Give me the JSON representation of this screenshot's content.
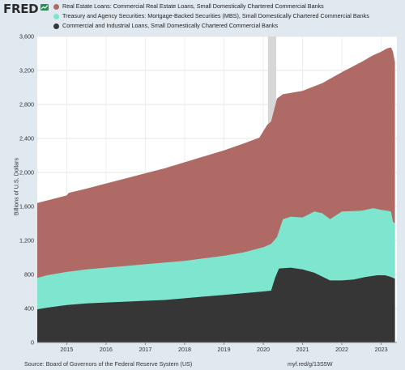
{
  "brand": {
    "logo_text": "FRED"
  },
  "footer": {
    "source": "Source: Board of Governors of the Federal Reserve System (US)",
    "url": "myf.red/g/13S5W"
  },
  "colors": {
    "background": "#e1e9f0",
    "plot_bg": "#ffffff",
    "recession_shade": "#d7d7d7",
    "real_estate": "#b06a66",
    "mbs": "#7ee6cf",
    "ci_loans": "#363636"
  },
  "chart_data": {
    "type": "area",
    "stacked": false,
    "title": "",
    "xlabel": "",
    "ylabel": "Billions of U.S. Dollars",
    "ylim": [
      0,
      3600
    ],
    "yticks": [
      "0",
      "400",
      "800",
      "1,200",
      "1,600",
      "2,000",
      "2,400",
      "2,800",
      "3,200",
      "3,600"
    ],
    "ytick_values": [
      0,
      400,
      800,
      1200,
      1600,
      2000,
      2400,
      2800,
      3200,
      3600
    ],
    "xlim": [
      2014.25,
      2023.4
    ],
    "xticks": [
      "2015",
      "2016",
      "2017",
      "2018",
      "2019",
      "2020",
      "2021",
      "2022",
      "2023"
    ],
    "xtick_values": [
      2015,
      2016,
      2017,
      2018,
      2019,
      2020,
      2021,
      2022,
      2023
    ],
    "recession": {
      "start": 2020.12,
      "end": 2020.33
    },
    "grid": true,
    "legend_position": "top-left",
    "series": [
      {
        "name": "Real Estate Loans: Commercial Real Estate Loans, Small Domestically Chartered Commercial Banks",
        "color": "#b06a66",
        "points": [
          [
            2014.25,
            1640
          ],
          [
            2014.5,
            1670
          ],
          [
            2014.75,
            1700
          ],
          [
            2015.0,
            1730
          ],
          [
            2015.05,
            1760
          ],
          [
            2015.5,
            1810
          ],
          [
            2016.0,
            1870
          ],
          [
            2016.5,
            1930
          ],
          [
            2017.0,
            1990
          ],
          [
            2017.5,
            2050
          ],
          [
            2018.0,
            2120
          ],
          [
            2018.5,
            2190
          ],
          [
            2019.0,
            2260
          ],
          [
            2019.5,
            2340
          ],
          [
            2019.9,
            2410
          ],
          [
            2020.1,
            2560
          ],
          [
            2020.2,
            2600
          ],
          [
            2020.35,
            2870
          ],
          [
            2020.5,
            2920
          ],
          [
            2021.0,
            2960
          ],
          [
            2021.5,
            3050
          ],
          [
            2022.0,
            3180
          ],
          [
            2022.5,
            3300
          ],
          [
            2022.8,
            3380
          ],
          [
            2023.0,
            3420
          ],
          [
            2023.15,
            3460
          ],
          [
            2023.25,
            3470
          ],
          [
            2023.3,
            3420
          ],
          [
            2023.35,
            3300
          ]
        ]
      },
      {
        "name": "Treasury and Agency Securities: Mortgage-Backed Securities (MBS), Small Domestically Chartered Commercial Banks",
        "color": "#7ee6cf",
        "points": [
          [
            2014.25,
            760
          ],
          [
            2014.5,
            790
          ],
          [
            2015.0,
            830
          ],
          [
            2015.5,
            860
          ],
          [
            2016.0,
            880
          ],
          [
            2016.5,
            900
          ],
          [
            2017.0,
            920
          ],
          [
            2017.5,
            940
          ],
          [
            2018.0,
            960
          ],
          [
            2018.5,
            990
          ],
          [
            2019.0,
            1020
          ],
          [
            2019.5,
            1060
          ],
          [
            2020.0,
            1120
          ],
          [
            2020.2,
            1160
          ],
          [
            2020.35,
            1240
          ],
          [
            2020.5,
            1450
          ],
          [
            2020.7,
            1480
          ],
          [
            2021.0,
            1470
          ],
          [
            2021.3,
            1540
          ],
          [
            2021.5,
            1520
          ],
          [
            2021.7,
            1450
          ],
          [
            2022.0,
            1540
          ],
          [
            2022.5,
            1550
          ],
          [
            2022.8,
            1580
          ],
          [
            2023.0,
            1560
          ],
          [
            2023.15,
            1550
          ],
          [
            2023.25,
            1540
          ],
          [
            2023.3,
            1420
          ],
          [
            2023.35,
            1400
          ]
        ]
      },
      {
        "name": "Commercial and Industrial Loans, Small Domestically Chartered Commercial Banks",
        "color": "#363636",
        "points": [
          [
            2014.25,
            390
          ],
          [
            2014.5,
            410
          ],
          [
            2015.0,
            440
          ],
          [
            2015.5,
            460
          ],
          [
            2016.0,
            470
          ],
          [
            2016.5,
            480
          ],
          [
            2017.0,
            490
          ],
          [
            2017.5,
            500
          ],
          [
            2018.0,
            520
          ],
          [
            2018.5,
            540
          ],
          [
            2019.0,
            560
          ],
          [
            2019.5,
            580
          ],
          [
            2020.0,
            600
          ],
          [
            2020.2,
            610
          ],
          [
            2020.3,
            760
          ],
          [
            2020.4,
            870
          ],
          [
            2020.7,
            880
          ],
          [
            2021.0,
            860
          ],
          [
            2021.3,
            820
          ],
          [
            2021.7,
            730
          ],
          [
            2022.0,
            730
          ],
          [
            2022.3,
            740
          ],
          [
            2022.6,
            770
          ],
          [
            2022.9,
            790
          ],
          [
            2023.1,
            790
          ],
          [
            2023.25,
            770
          ],
          [
            2023.35,
            750
          ]
        ]
      }
    ]
  }
}
